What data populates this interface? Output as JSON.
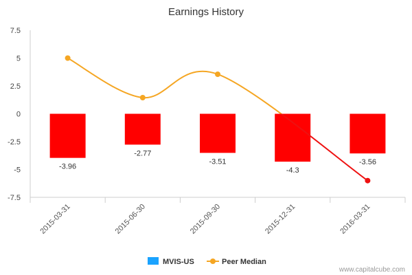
{
  "chart_data": {
    "type": "bar",
    "title": "Earnings History",
    "categories": [
      "2015-03-31",
      "2015-06-30",
      "2015-09-30",
      "2015-12-31",
      "2016-03-31"
    ],
    "series": [
      {
        "name": "MVIS-US",
        "type": "bar",
        "values": [
          -3.96,
          -2.77,
          -3.51,
          -4.3,
          -3.56
        ],
        "data_labels": [
          "-3.96",
          "-2.77",
          "-3.51",
          "-4.3",
          "-3.56"
        ],
        "bar_color": "#ff0000",
        "legend_color": "#1aa3ff"
      },
      {
        "name": "Peer Median",
        "type": "line",
        "values": [
          5.0,
          1.45,
          3.55,
          null,
          -6.0
        ],
        "color": "#f5a623",
        "negative_color": "#ee1111"
      }
    ],
    "yticks": [
      "7.5",
      "5",
      "2.5",
      "0",
      "-2.5",
      "-5",
      "-7.5"
    ],
    "ylim": [
      -7.5,
      7.5
    ],
    "grid": false,
    "legend_position": "bottom-center"
  },
  "credit": "www.capitalcube.com"
}
